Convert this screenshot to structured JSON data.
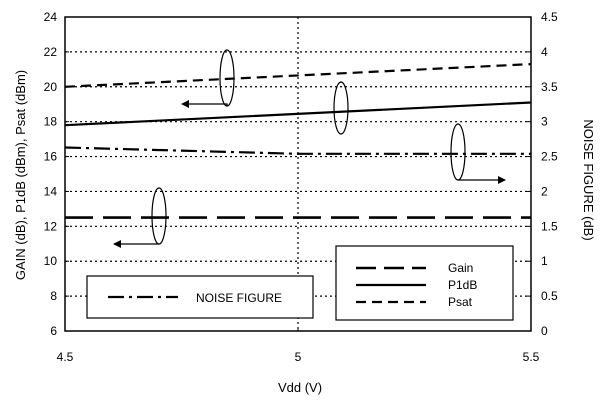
{
  "chart_data": {
    "type": "line",
    "xlabel": "Vdd (V)",
    "ylabel": "GAIN (dB), P1dB (dBm), Psat (dBm)",
    "ylabel_right": "NOISE FIGURE (dB)",
    "xlim": [
      4.5,
      5.5
    ],
    "ylim": [
      6,
      24
    ],
    "ylim_right": [
      0,
      4.5
    ],
    "x_ticks": [
      "4.5",
      "5",
      "5.5"
    ],
    "y_ticks": [
      "6",
      "8",
      "10",
      "12",
      "14",
      "16",
      "18",
      "20",
      "22",
      "24"
    ],
    "y_ticks_right": [
      "0",
      "0.5",
      "1",
      "1.5",
      "2",
      "2.5",
      "3",
      "3.5",
      "4",
      "4.5"
    ],
    "grid": true,
    "series": [
      {
        "name": "Gain",
        "axis": "left",
        "dash": "long-dash",
        "x": [
          4.5,
          5.5
        ],
        "y": [
          12.5,
          12.5
        ]
      },
      {
        "name": "P1dB",
        "axis": "left",
        "dash": "solid",
        "x": [
          4.5,
          5.5
        ],
        "y": [
          17.8,
          19.1
        ]
      },
      {
        "name": "Psat",
        "axis": "left",
        "dash": "short-dash",
        "x": [
          4.5,
          5.5
        ],
        "y": [
          20.0,
          21.3
        ]
      },
      {
        "name": "NOISE FIGURE",
        "axis": "right",
        "dash": "dash-dot",
        "x": [
          4.5,
          5.0,
          5.5
        ],
        "y": [
          2.63,
          2.54,
          2.54
        ]
      }
    ],
    "legend": {
      "placement": "bottom-right",
      "entries": [
        "Gain",
        "P1dB",
        "Psat"
      ],
      "noise_entry": "NOISE FIGURE"
    }
  }
}
